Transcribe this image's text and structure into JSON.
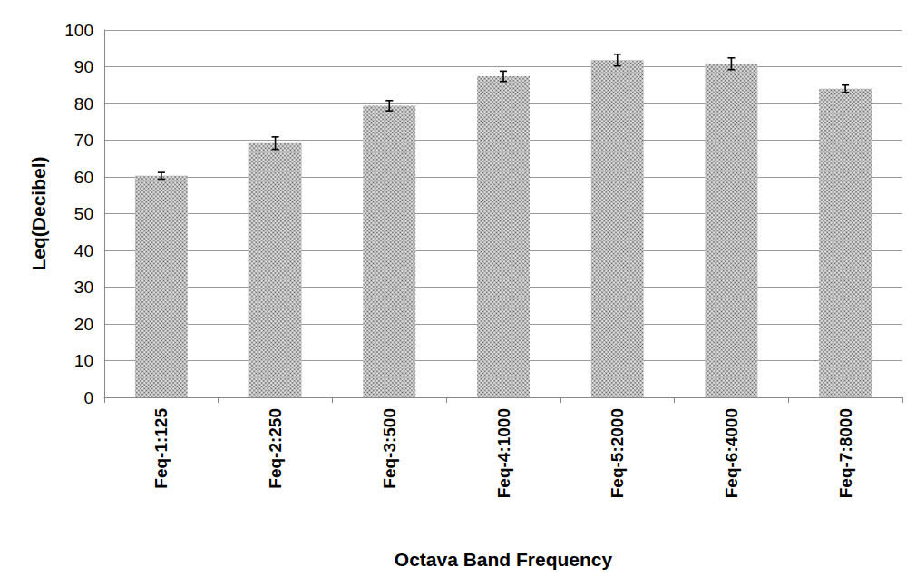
{
  "chart_data": {
    "type": "bar",
    "categories": [
      "Feq-1:125",
      "Feq-2:250",
      "Feq-3:500",
      "Feq-4:1000",
      "Feq-5:2000",
      "Feq-6:4000",
      "Feq-7:8000"
    ],
    "values": [
      60.3,
      69.2,
      79.4,
      87.4,
      91.8,
      90.8,
      84.0
    ],
    "errors": [
      0.9,
      1.7,
      1.4,
      1.4,
      1.6,
      1.6,
      1.0
    ],
    "color": "#e4e4e4",
    "x_label": "Octava Band Frequency",
    "y_label": "Leq(Decibel)",
    "ylim": [
      0,
      100
    ],
    "yticks": [
      0,
      10,
      20,
      30,
      40,
      50,
      60,
      70,
      80,
      90,
      100
    ],
    "grid": true
  }
}
